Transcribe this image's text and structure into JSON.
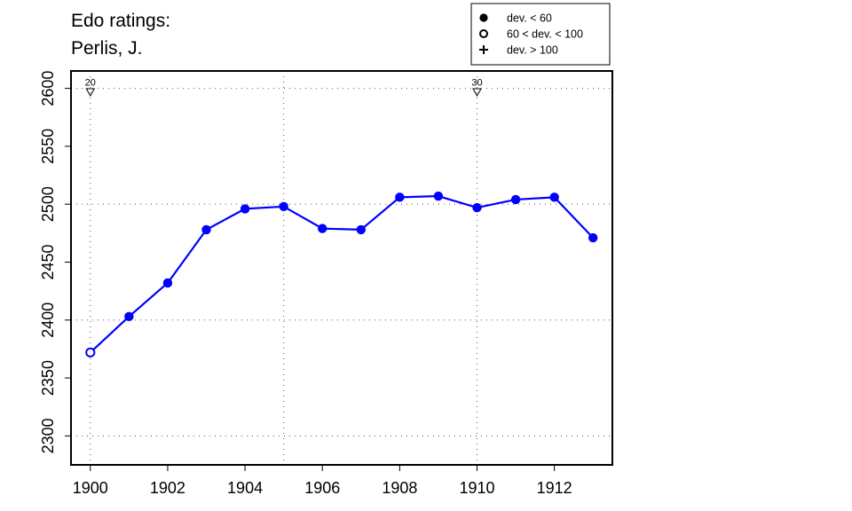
{
  "chart_data": {
    "type": "line",
    "title_lines": [
      "Edo ratings:",
      "Perlis, J."
    ],
    "xlabel": "",
    "ylabel": "",
    "xlim": [
      1899.5,
      1913.5
    ],
    "ylim": [
      2275,
      2615
    ],
    "x_ticks": [
      1900,
      1902,
      1904,
      1906,
      1908,
      1910,
      1912
    ],
    "y_ticks": [
      2300,
      2350,
      2400,
      2450,
      2500,
      2550,
      2600
    ],
    "grid_x": [
      1900,
      1905,
      1910
    ],
    "grid_y": [
      2300,
      2400,
      2500,
      2600
    ],
    "grid": true,
    "series_color": "#0000ff",
    "series": [
      {
        "name": "",
        "x": [
          1900,
          1901,
          1902,
          1903,
          1904,
          1905,
          1906,
          1907,
          1908,
          1909,
          1910,
          1911,
          1912,
          1913
        ],
        "y": [
          2372,
          2403,
          2432,
          2478,
          2496,
          2498,
          2479,
          2478,
          2506,
          2507,
          2497,
          2504,
          2506,
          2471
        ],
        "marker": [
          "open",
          "filled",
          "filled",
          "filled",
          "filled",
          "filled",
          "filled",
          "filled",
          "filled",
          "filled",
          "filled",
          "filled",
          "filled",
          "filled"
        ]
      }
    ],
    "age_markers": [
      {
        "x": 1900,
        "y": 2597,
        "label": "20"
      },
      {
        "x": 1910,
        "y": 2597,
        "label": "30"
      }
    ],
    "legend": {
      "position": "top-right",
      "entries": [
        {
          "symbol": "filled",
          "label": "dev. < 60"
        },
        {
          "symbol": "open",
          "label": "60 < dev. < 100"
        },
        {
          "symbol": "plus",
          "label": "dev. > 100"
        }
      ]
    }
  }
}
